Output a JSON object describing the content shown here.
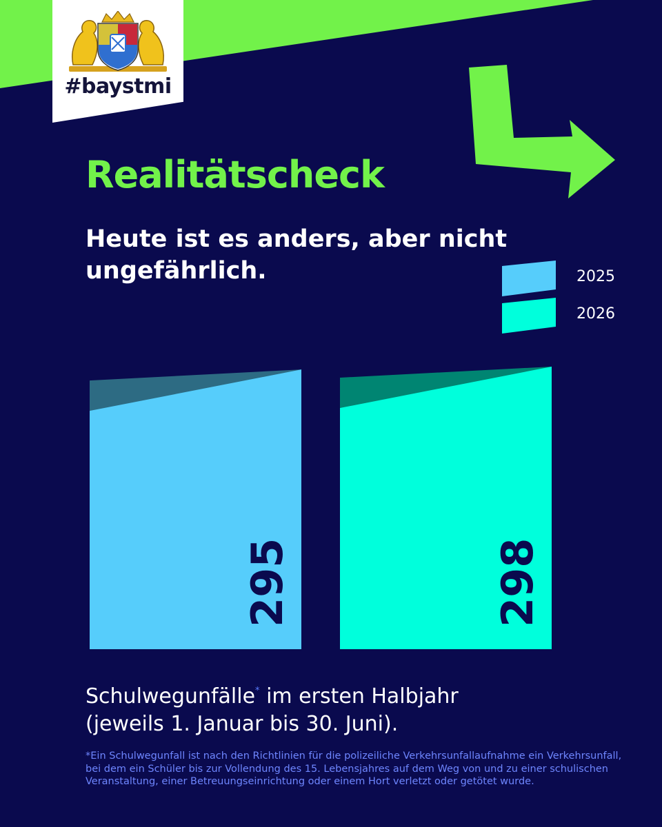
{
  "brand": {
    "hashtag": "#baystmi"
  },
  "headline": "Realitätscheck",
  "subheadline": "Heute ist es anders, aber nicht ungefährlich.",
  "colors": {
    "background": "#0a0a4e",
    "accent_green": "#72f24a",
    "series_2025": "#56cdfb",
    "series_2026": "#00ffdc",
    "footnote": "#6e86ff"
  },
  "chart_data": {
    "type": "bar",
    "categories": [
      "2025",
      "2026"
    ],
    "values": [
      295,
      298
    ],
    "colors": [
      "#56cdfb",
      "#00ffdc"
    ],
    "legend": [
      "2025",
      "2026"
    ],
    "legend_position": "top-right",
    "ylim": [
      0,
      298
    ],
    "grid": false
  },
  "caption": {
    "line1_before": "Schulwegunfälle",
    "marker": "*",
    "line1_after": " im ersten Halbjahr",
    "line2": "(jeweils 1. Januar bis 30. Juni)."
  },
  "footnote": "*Ein Schulwegunfall ist nach den Richtlinien für die polizeiliche Verkehrsunfallaufnahme ein Verkehrsunfall, bei dem ein Schüler bis zur Vollendung des 15. Lebensjahres auf dem Weg von und zu einer schulischen Veranstaltung, einer Betreuungseinrichtung oder einem Hort verletzt oder getötet wurde."
}
